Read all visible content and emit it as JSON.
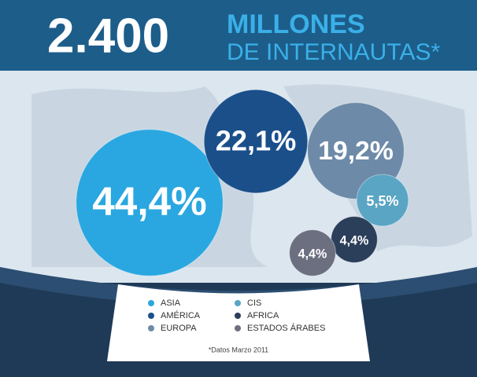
{
  "chart_data": {
    "type": "bubble",
    "title": "2.400",
    "subtitle": [
      "MILLONES",
      "DE INTERNAUTAS*"
    ],
    "note": "*Datos Marzo 2011",
    "categories": [
      "ASIA",
      "AMÉRICA",
      "EUROPA",
      "CIS",
      "AFRICA",
      "ESTADOS ÁRABES"
    ],
    "values": [
      44.4,
      22.1,
      19.2,
      5.5,
      4.4,
      4.4
    ],
    "value_labels": [
      "44,4%",
      "22,1%",
      "19,2%",
      "5,5%",
      "4,4%",
      "4,4%"
    ],
    "colors": [
      "#2aa7e0",
      "#1a4f8a",
      "#6d8aa8",
      "#5aa5c4",
      "#2b3e5a",
      "#6b6f80"
    ]
  }
}
